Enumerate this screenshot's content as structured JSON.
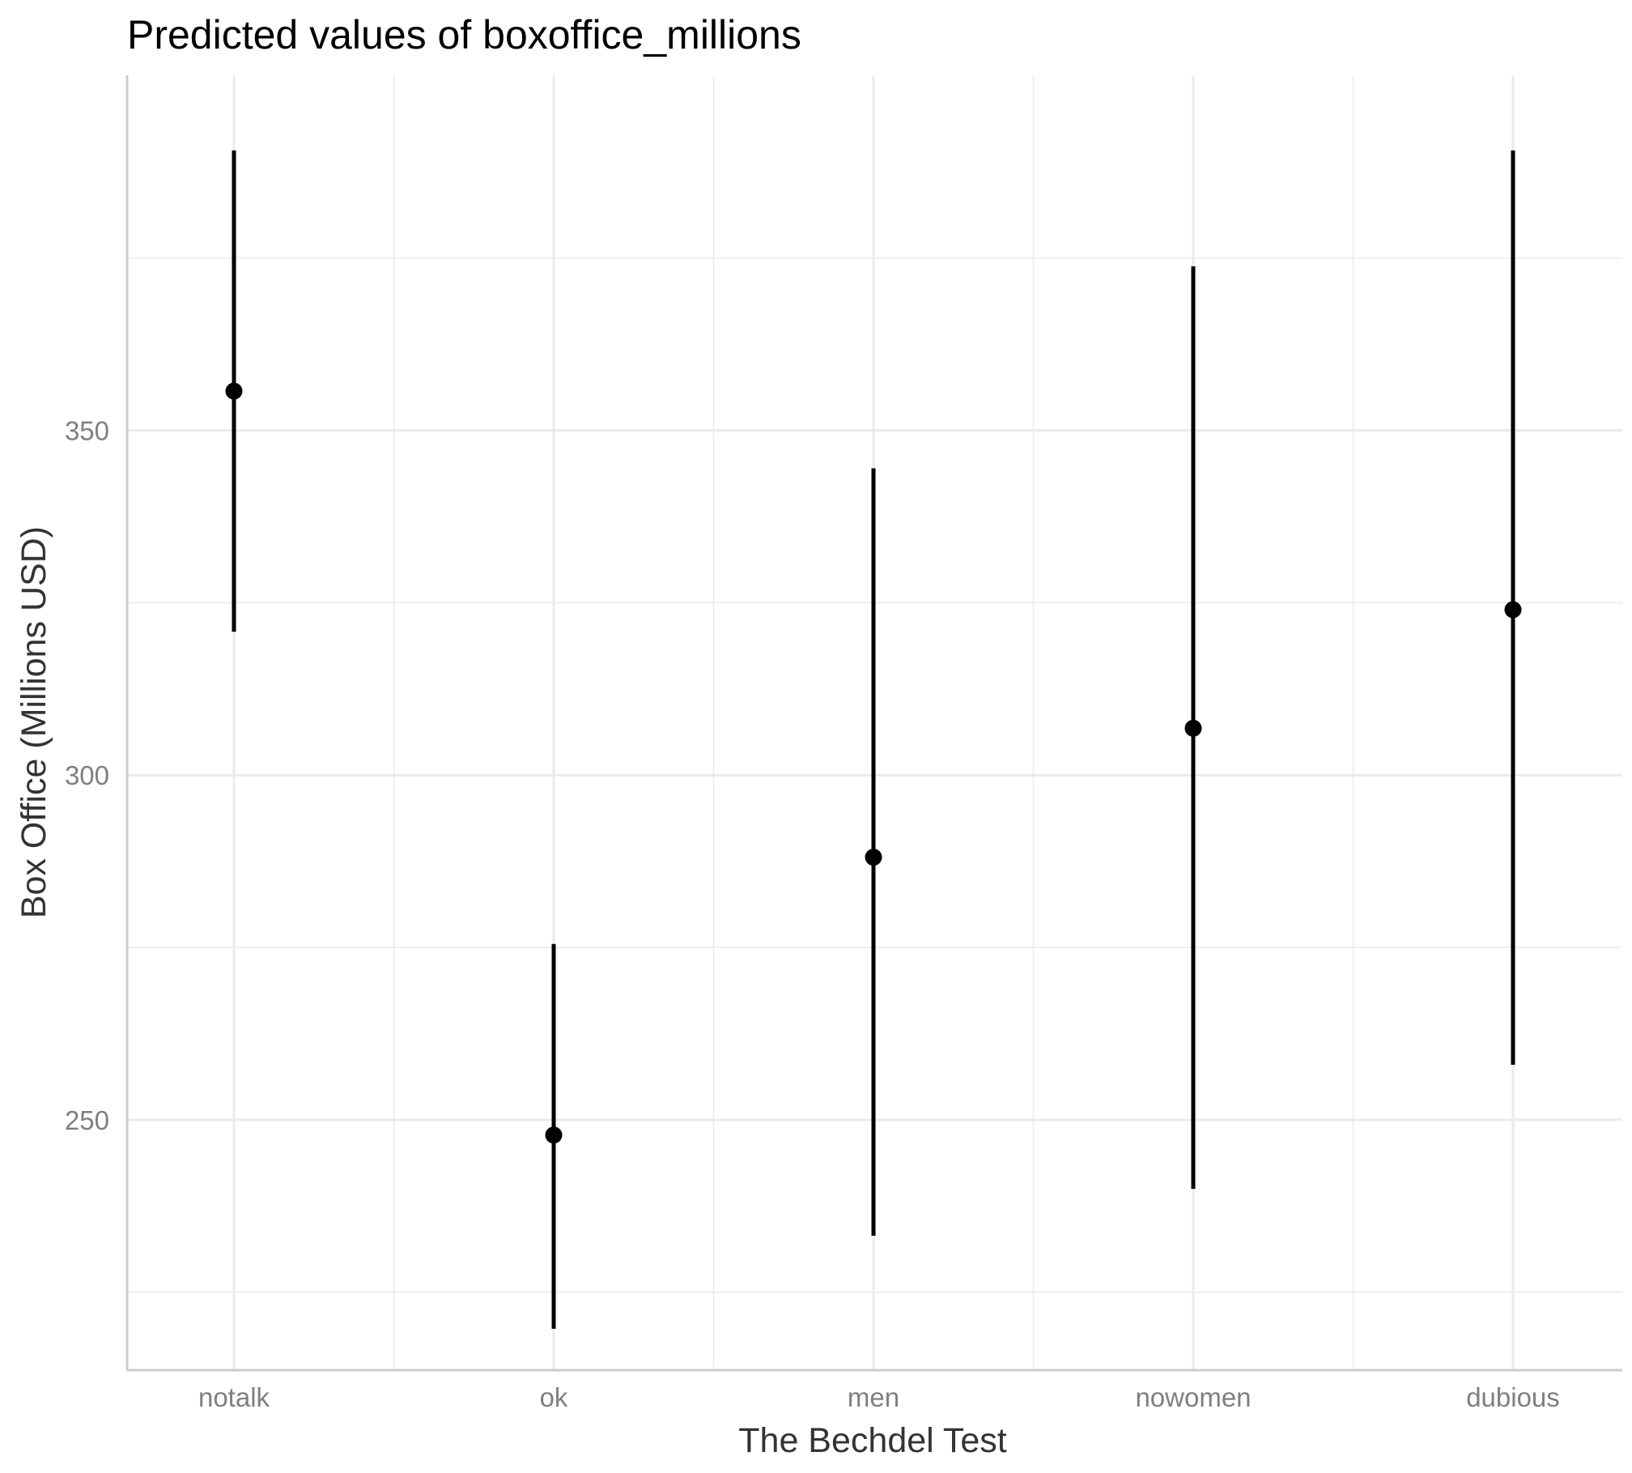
{
  "chart_data": {
    "type": "scatter",
    "title": "Predicted values of boxoffice_millions",
    "xlabel": "The Bechdel Test",
    "ylabel": "Box Office (Millions USD)",
    "categories": [
      "notalk",
      "ok",
      "men",
      "nowomen",
      "dubious"
    ],
    "series": [
      {
        "estimates": [
          355.7,
          247.8,
          288.1,
          306.8,
          324.0
        ],
        "ci_low": [
          320.8,
          219.7,
          233.2,
          240.0,
          258.0
        ],
        "ci_high": [
          390.6,
          275.5,
          344.5,
          373.8,
          390.6
        ]
      }
    ],
    "y_ticks": [
      250,
      300,
      350
    ],
    "y_tick_labels": [
      "250",
      "300",
      "350"
    ],
    "ylim": [
      213.7,
      401.5
    ],
    "grid": true,
    "point_color": "#000000",
    "error_bar_color": "#000000",
    "grid_color": "#ebebeb",
    "axis_line_color": "#cccccc"
  }
}
